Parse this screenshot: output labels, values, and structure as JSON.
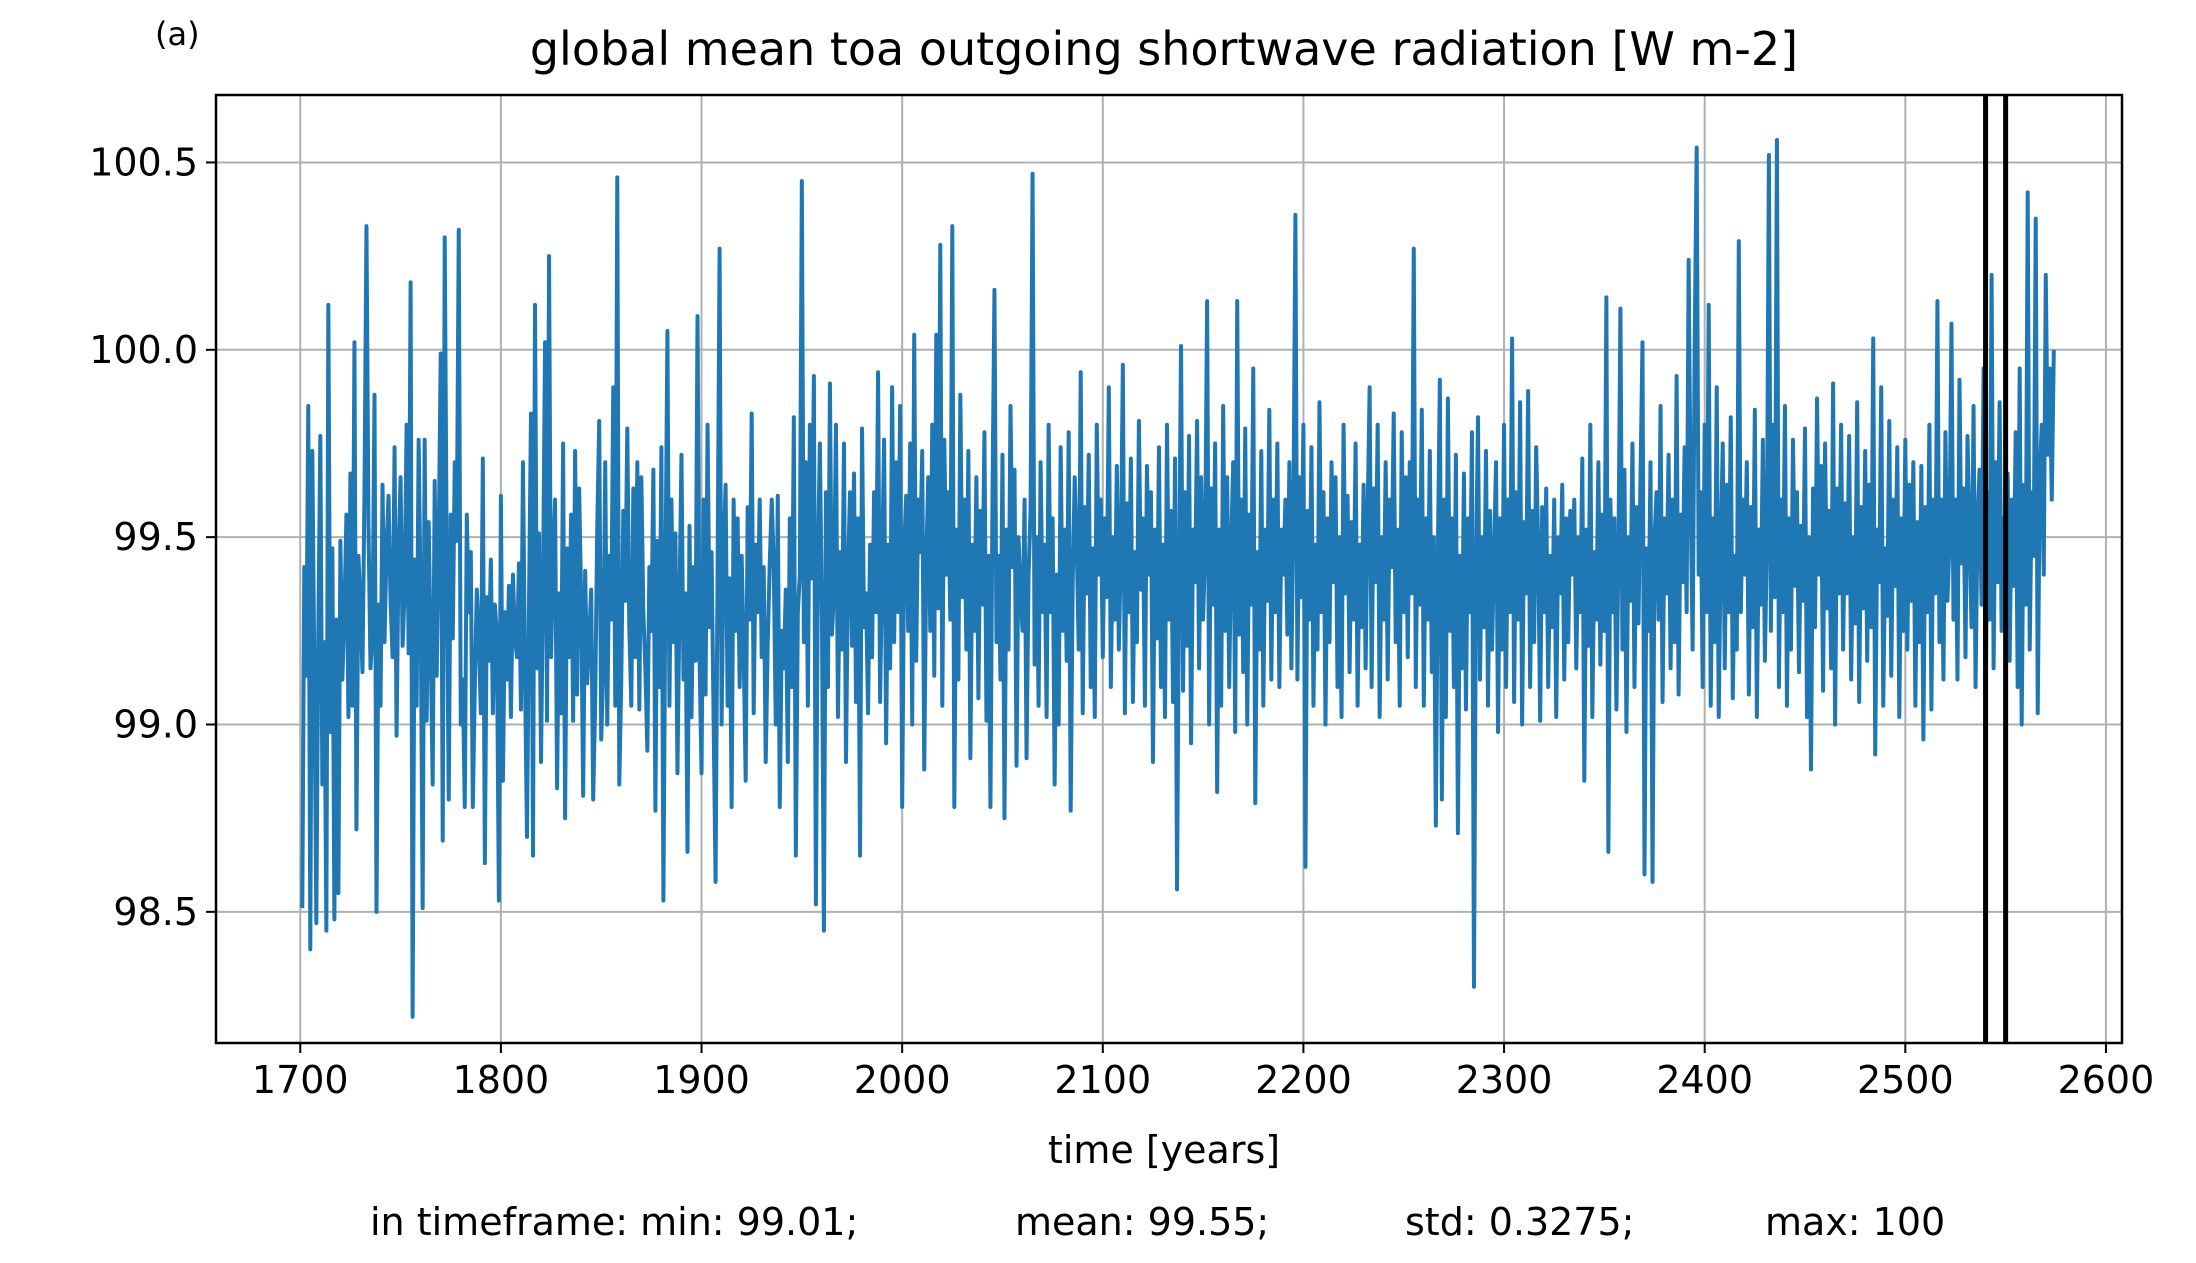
{
  "panel_label": "(a)",
  "footer": {
    "min": "in timeframe: min: 99.01;",
    "mean": "mean: 99.55;",
    "std": "std: 0.3275;",
    "max": "max: 100"
  },
  "colors": {
    "series": "#1f77b4",
    "grid": "#b0b0b0",
    "marker_lines": "#000000"
  },
  "chart_data": {
    "type": "line",
    "title": "global mean toa outgoing shortwave radiation [W m-2]",
    "xlabel": "time [years]",
    "ylabel": "",
    "xlim": [
      1658,
      2608
    ],
    "ylim": [
      98.15,
      100.68
    ],
    "xticks": [
      1700,
      1800,
      1900,
      2000,
      2100,
      2200,
      2300,
      2400,
      2500,
      2600
    ],
    "yticks": [
      98.5,
      99.0,
      99.5,
      100.0,
      100.5
    ],
    "ytick_labels": [
      "98.5",
      "99.0",
      "99.5",
      "100.0",
      "100.5"
    ],
    "grid": true,
    "vertical_markers": [
      2540,
      2550
    ],
    "series": [
      {
        "x_start": 1701,
        "x_step": 1,
        "values": [
          98.51,
          99.42,
          99.13,
          99.85,
          98.4,
          99.73,
          99.15,
          98.47,
          99.25,
          99.77,
          98.84,
          99.22,
          98.45,
          100.12,
          98.98,
          99.47,
          98.48,
          99.28,
          98.55,
          99.49,
          99.12,
          99.3,
          99.56,
          99.02,
          99.67,
          99.05,
          100.02,
          98.72,
          99.45,
          99.31,
          99.14,
          99.62,
          100.33,
          99.53,
          99.15,
          99.24,
          99.88,
          98.5,
          99.32,
          99.05,
          99.64,
          99.22,
          99.47,
          99.61,
          99.33,
          99.18,
          99.74,
          98.97,
          99.46,
          99.66,
          99.21,
          99.35,
          99.8,
          99.19,
          100.18,
          98.22,
          99.44,
          99.05,
          99.76,
          99.33,
          98.51,
          99.76,
          99.01,
          99.54,
          99.2,
          98.84,
          99.65,
          99.13,
          99.49,
          99.99,
          98.69,
          100.3,
          99.44,
          98.8,
          99.56,
          99.23,
          99.7,
          99.49,
          100.32,
          99.0,
          99.12,
          98.78,
          99.56,
          99.3,
          99.46,
          98.78,
          99.1,
          99.36,
          99.23,
          99.03,
          99.71,
          98.63,
          99.34,
          99.17,
          99.44,
          99.03,
          99.32,
          99.24,
          98.53,
          99.61,
          98.85,
          99.3,
          99.12,
          99.37,
          99.02,
          99.4,
          99.23,
          99.18,
          99.43,
          99.04,
          99.7,
          99.14,
          98.7,
          99.32,
          99.83,
          98.65,
          100.12,
          99.15,
          99.51,
          98.9,
          99.37,
          100.02,
          99.01,
          100.25,
          99.18,
          99.44,
          99.6,
          98.83,
          99.35,
          99.03,
          99.75,
          98.75,
          99.47,
          99.18,
          99.56,
          99.01,
          99.73,
          99.08,
          99.63,
          99.34,
          98.81,
          99.41,
          99.11,
          99.23,
          99.36,
          98.8,
          99.06,
          99.52,
          99.81,
          98.96,
          99.14,
          99.7,
          99.0,
          99.45,
          99.28,
          99.9,
          99.05,
          100.46,
          98.84,
          99.12,
          99.57,
          99.33,
          99.79,
          99.26,
          99.05,
          99.63,
          99.18,
          99.7,
          99.04,
          99.66,
          99.3,
          99.15,
          98.93,
          99.42,
          99.25,
          99.68,
          98.77,
          99.49,
          99.1,
          99.74,
          98.53,
          99.38,
          100.05,
          99.05,
          99.6,
          99.22,
          99.51,
          98.87,
          99.32,
          99.72,
          99.12,
          99.35,
          98.66,
          99.53,
          99.02,
          99.42,
          99.17,
          100.09,
          99.18,
          98.87,
          99.6,
          99.08,
          99.8,
          99.26,
          99.46,
          99.02,
          98.58,
          99.41,
          100.27,
          99.0,
          99.46,
          99.64,
          99.05,
          99.39,
          98.78,
          99.6,
          99.25,
          99.55,
          99.1,
          99.45,
          99.2,
          98.85,
          99.58,
          99.28,
          99.83,
          99.03,
          99.48,
          99.3,
          99.6,
          99.18,
          99.42,
          98.9,
          99.22,
          99.43,
          99.6,
          99.42,
          99.0,
          99.61,
          98.78,
          99.25,
          99.15,
          99.36,
          98.9,
          99.55,
          99.1,
          99.82,
          98.65,
          99.3,
          99.4,
          100.45,
          99.22,
          99.7,
          99.05,
          99.8,
          99.39,
          99.93,
          98.52,
          99.45,
          99.75,
          99.28,
          98.45,
          99.62,
          99.1,
          99.91,
          99.24,
          99.35,
          99.8,
          99.02,
          99.46,
          99.2,
          99.75,
          98.9,
          99.4,
          99.62,
          99.21,
          99.67,
          99.06,
          99.55,
          98.65,
          99.79,
          99.26,
          99.35,
          99.03,
          99.48,
          99.18,
          99.62,
          99.3,
          99.94,
          99.06,
          99.42,
          99.76,
          98.95,
          99.48,
          99.15,
          99.9,
          99.22,
          99.7,
          99.3,
          99.85,
          98.78,
          99.47,
          99.61,
          99.25,
          99.75,
          99.0,
          100.04,
          99.17,
          99.6,
          99.46,
          99.73,
          98.88,
          99.43,
          99.66,
          99.25,
          99.8,
          99.13,
          100.04,
          99.31,
          100.28,
          99.05,
          99.76,
          99.4,
          99.62,
          99.28,
          100.33,
          98.78,
          99.52,
          99.12,
          99.88,
          99.34,
          99.6,
          99.2,
          99.73,
          98.91,
          99.48,
          99.25,
          99.66,
          99.07,
          99.57,
          99.32,
          99.78,
          99.01,
          99.45,
          98.78,
          99.6,
          100.16,
          99.22,
          99.45,
          99.12,
          99.72,
          98.75,
          99.52,
          99.2,
          99.85,
          99.42,
          99.68,
          98.89,
          99.5,
          99.35,
          99.25,
          99.6,
          98.91,
          99.4,
          99.57,
          100.47,
          99.16,
          99.5,
          99.05,
          99.7,
          99.3,
          99.48,
          99.02,
          99.8,
          99.3,
          99.55,
          98.84,
          99.4,
          99.0,
          99.74,
          99.25,
          99.52,
          99.17,
          99.78,
          98.77,
          99.38,
          99.66,
          99.48,
          99.2,
          99.94,
          99.03,
          99.58,
          99.35,
          99.72,
          99.1,
          99.47,
          99.02,
          99.8,
          99.4,
          99.6,
          99.18,
          99.55,
          99.34,
          99.9,
          99.1,
          99.5,
          99.28,
          99.69,
          99.2,
          99.45,
          99.96,
          99.03,
          99.59,
          99.3,
          99.71,
          99.06,
          99.46,
          99.22,
          99.81,
          99.36,
          99.55,
          99.05,
          99.69,
          99.4,
          99.62,
          98.9,
          99.52,
          99.23,
          99.74,
          99.1,
          99.48,
          99.02,
          99.8,
          99.28,
          99.57,
          99.06,
          99.71,
          98.56,
          99.4,
          100.01,
          99.09,
          99.62,
          99.21,
          99.77,
          98.95,
          99.52,
          99.38,
          99.81,
          99.15,
          99.66,
          99.28,
          99.47,
          100.13,
          99.0,
          99.63,
          99.32,
          99.75,
          98.82,
          99.52,
          99.05,
          99.85,
          99.25,
          99.66,
          99.1,
          99.48,
          99.7,
          98.98,
          100.13,
          99.24,
          99.6,
          99.14,
          99.79,
          99.0,
          99.56,
          99.32,
          99.95,
          98.79,
          99.46,
          99.2,
          99.73,
          99.05,
          99.52,
          99.33,
          99.84,
          99.12,
          99.6,
          99.3,
          99.75,
          99.1,
          99.52,
          99.4,
          99.6,
          99.24,
          99.7,
          99.15,
          99.55,
          100.36,
          99.12,
          99.66,
          99.34,
          99.8,
          98.62,
          99.57,
          99.28,
          99.74,
          99.05,
          99.48,
          99.2,
          99.86,
          99.3,
          99.62,
          99.0,
          99.55,
          99.22,
          99.7,
          99.38,
          99.66,
          99.1,
          99.5,
          99.02,
          99.8,
          99.35,
          99.61,
          99.14,
          99.54,
          99.28,
          99.75,
          99.05,
          99.48,
          99.26,
          99.64,
          99.15,
          99.56,
          99.9,
          99.1,
          99.63,
          99.38,
          99.8,
          99.02,
          99.5,
          99.28,
          99.7,
          99.12,
          99.6,
          99.42,
          99.83,
          99.22,
          99.52,
          99.05,
          99.78,
          99.3,
          99.66,
          99.18,
          99.7,
          99.35,
          100.27,
          99.1,
          99.6,
          99.32,
          99.84,
          99.05,
          99.55,
          99.28,
          99.73,
          99.14,
          99.5,
          98.73,
          99.45,
          99.92,
          98.8,
          99.6,
          99.02,
          99.87,
          99.25,
          99.55,
          99.1,
          99.72,
          98.71,
          99.45,
          99.15,
          99.67,
          99.04,
          99.55,
          99.3,
          99.78,
          98.3,
          99.4,
          99.82,
          99.12,
          99.5,
          99.26,
          99.73,
          99.05,
          99.57,
          99.2,
          99.45,
          99.7,
          98.98,
          99.55,
          99.2,
          99.8,
          99.1,
          99.6,
          99.3,
          100.03,
          99.06,
          99.62,
          99.28,
          99.86,
          99.0,
          99.54,
          99.35,
          99.89,
          99.1,
          99.57,
          99.22,
          99.74,
          99.48,
          99.01,
          99.58,
          99.3,
          99.63,
          99.1,
          99.45,
          99.26,
          99.6,
          99.02,
          99.5,
          99.35,
          99.64,
          99.12,
          99.55,
          99.22,
          99.57,
          99.4,
          99.6,
          99.15,
          99.5,
          99.3,
          99.71,
          98.85,
          99.52,
          99.21,
          99.8,
          99.02,
          99.46,
          99.28,
          99.7,
          99.16,
          99.56,
          99.25,
          100.14,
          98.66,
          99.6,
          99.3,
          99.55,
          99.04,
          99.45,
          100.11,
          99.2,
          99.68,
          98.98,
          99.5,
          99.33,
          99.75,
          99.1,
          99.58,
          99.27,
          99.66,
          100.02,
          98.6,
          99.47,
          99.25,
          99.7,
          98.58,
          99.5,
          99.62,
          99.28,
          99.85,
          99.06,
          99.55,
          99.35,
          99.72,
          99.15,
          99.6,
          99.22,
          99.93,
          99.08,
          99.56,
          99.38,
          99.74,
          99.3,
          100.24,
          99.6,
          99.2,
          100.0,
          100.54,
          99.4,
          99.62,
          99.1,
          99.8,
          99.3,
          100.12,
          99.05,
          99.55,
          99.22,
          99.9,
          99.02,
          99.47,
          99.75,
          99.15,
          99.64,
          99.3,
          99.82,
          99.07,
          99.45,
          99.2,
          100.29,
          99.3,
          99.6,
          99.4,
          99.7,
          99.08,
          99.58,
          99.26,
          99.84,
          99.02,
          99.52,
          99.32,
          99.76,
          99.17,
          99.48,
          100.52,
          99.25,
          99.8,
          99.34,
          100.56,
          99.1,
          99.6,
          99.3,
          99.85,
          99.05,
          99.55,
          99.2,
          99.76,
          99.37,
          99.62,
          99.14,
          99.53,
          99.33,
          99.79,
          99.02,
          99.5,
          98.88,
          99.63,
          99.26,
          99.87,
          99.4,
          99.69,
          99.09,
          99.75,
          99.31,
          99.57,
          99.15,
          99.91,
          99.0,
          99.63,
          99.35,
          99.8,
          99.2,
          99.59,
          99.35,
          99.77,
          99.12,
          99.5,
          99.27,
          99.86,
          99.06,
          99.58,
          99.31,
          99.73,
          99.17,
          99.64,
          99.26,
          100.03,
          98.92,
          99.52,
          99.38,
          99.9,
          99.05,
          99.47,
          99.29,
          99.81,
          99.13,
          99.6,
          99.37,
          99.74,
          99.02,
          99.55,
          99.25,
          99.76,
          99.2,
          99.64,
          99.33,
          99.7,
          99.05,
          99.54,
          99.22,
          99.69,
          98.96,
          99.58,
          99.3,
          99.8,
          99.04,
          99.6,
          99.35,
          100.13,
          99.22,
          99.6,
          99.12,
          99.78,
          99.33,
          99.48,
          100.07,
          99.28,
          99.6,
          99.12,
          99.92,
          99.43,
          99.63,
          99.18,
          99.77,
          99.5,
          99.26,
          99.85,
          99.1,
          99.55,
          99.68,
          99.32,
          99.95,
          99.05,
          99.62,
          99.28,
          100.2,
          99.15,
          99.7,
          99.38,
          99.86,
          99.25,
          99.55,
          99.42,
          99.67,
          99.17,
          99.6,
          99.37,
          99.78,
          99.1,
          99.95,
          99.0,
          99.64,
          99.32,
          100.42,
          99.2,
          99.62,
          99.45,
          100.35,
          99.03,
          99.66,
          99.8,
          99.4,
          100.2,
          99.72,
          99.95,
          99.6,
          100.0
        ]
      }
    ]
  }
}
